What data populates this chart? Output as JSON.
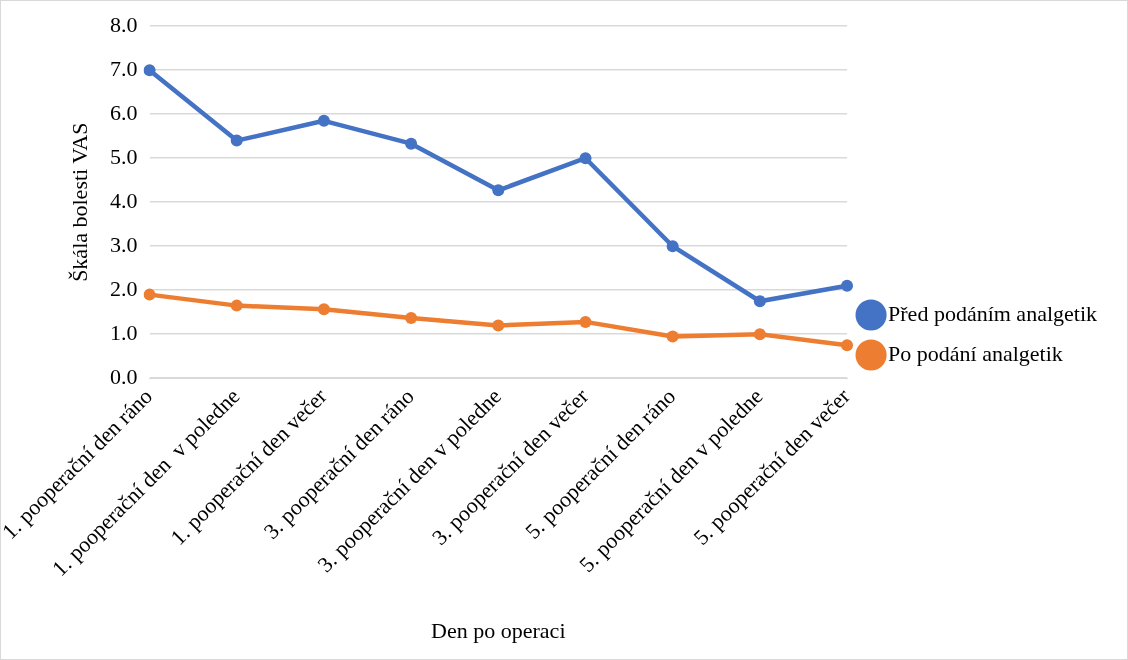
{
  "chart_data": {
    "type": "line",
    "xlabel": "Den po operaci",
    "ylabel": "Škála bolesti VAS",
    "categories": [
      "1. pooperační den ráno",
      "1. pooperační den  v poledne",
      "1. pooperační den večer",
      "3. pooperační den ráno",
      "3. pooperační den v poledne",
      "3. pooperační den večer",
      "5. pooperační den ráno",
      "5. pooperační den v poledne",
      "5. pooperační den večer"
    ],
    "series": [
      {
        "name": "Před podáním analgetik",
        "color": "#4472c4",
        "values": [
          7.0,
          5.4,
          5.85,
          5.33,
          4.27,
          5.0,
          3.0,
          1.75,
          2.1
        ]
      },
      {
        "name": "Po podání analgetik",
        "color": "#ed7d31",
        "values": [
          1.9,
          1.65,
          1.57,
          1.37,
          1.2,
          1.28,
          0.95,
          1.0,
          0.75
        ]
      }
    ],
    "ylim": [
      0,
      8
    ],
    "yticks": [
      {
        "value": 0,
        "label": "0.0"
      },
      {
        "value": 1,
        "label": "1.0"
      },
      {
        "value": 2,
        "label": "2.0"
      },
      {
        "value": 3,
        "label": "3.0"
      },
      {
        "value": 4,
        "label": "4.0"
      },
      {
        "value": 5,
        "label": "5.0"
      },
      {
        "value": 6,
        "label": "6.0"
      },
      {
        "value": 7,
        "label": "7.0"
      },
      {
        "value": 8,
        "label": "8.0"
      }
    ],
    "grid": "y",
    "legend": "right",
    "marker": "circle",
    "line_style": "solid"
  }
}
